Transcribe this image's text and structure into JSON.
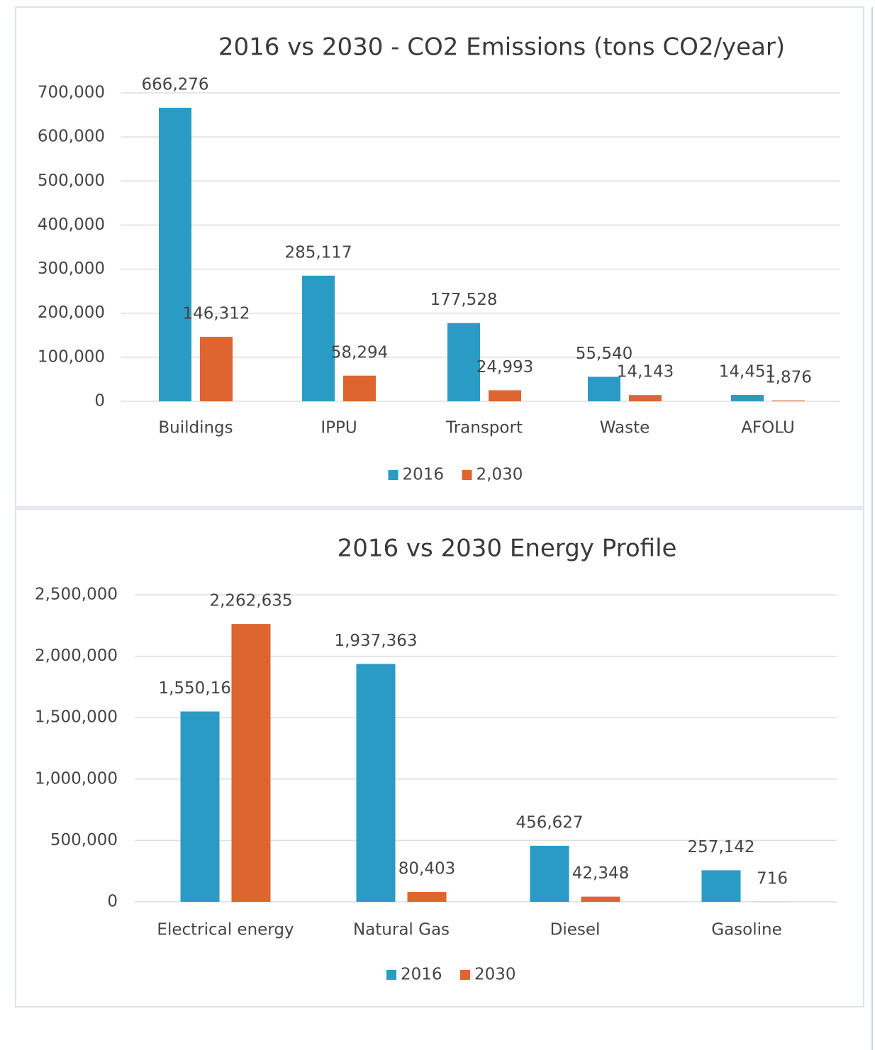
{
  "chart_data": [
    {
      "type": "bar",
      "title": "2016 vs 2030 - CO2 Emissions (tons CO2/year)",
      "categories": [
        "Buildings",
        "IPPU",
        "Transport",
        "Waste",
        "AFOLU"
      ],
      "series": [
        {
          "name": "2016",
          "color": "#2a9bc4",
          "values": [
            666276,
            285117,
            177528,
            55540,
            14451
          ],
          "value_labels": [
            "666,276",
            "285,117",
            "177,528",
            "55,540",
            "14,451"
          ]
        },
        {
          "name": "2,030",
          "color": "#de6430",
          "values": [
            146312,
            58294,
            24993,
            14143,
            1876
          ],
          "value_labels": [
            "146,312",
            "58,294",
            "24,993",
            "14,143",
            "1,876"
          ]
        }
      ],
      "ylim": [
        0,
        700000
      ],
      "yticks": [
        0,
        {
          "value": 100000,
          "label": "100,000"
        },
        {
          "value": 200000,
          "label": "200,000"
        },
        {
          "value": 300000,
          "label": "300,000"
        },
        {
          "value": 400000,
          "label": "400,000"
        },
        {
          "value": 500000,
          "label": "500,000"
        },
        {
          "value": 600000,
          "label": "600,000"
        },
        {
          "value": 700000,
          "label": "700,000"
        }
      ],
      "grid": true,
      "legend": "bottom"
    },
    {
      "type": "bar",
      "title": "2016 vs 2030 Energy Profile",
      "categories": [
        "Electrical energy",
        "Natural Gas",
        "Diesel",
        "Gasoline"
      ],
      "series": [
        {
          "name": "2016",
          "color": "#2a9bc4",
          "values": [
            1550168,
            1937363,
            456627,
            257142
          ],
          "value_labels": [
            "1,550,168",
            "1,937,363",
            "456,627",
            "257,142"
          ]
        },
        {
          "name": "2030",
          "color": "#de6430",
          "values": [
            2262635,
            80403,
            42348,
            716
          ],
          "value_labels": [
            "2,262,635",
            "80,403",
            "42,348",
            "716"
          ]
        }
      ],
      "ylim": [
        0,
        2500000
      ],
      "yticks": [
        0,
        {
          "value": 500000,
          "label": "500,000"
        },
        {
          "value": 1000000,
          "label": "1,000,000"
        },
        {
          "value": 1500000,
          "label": "1,500,000"
        },
        {
          "value": 2000000,
          "label": "2,000,000"
        },
        {
          "value": 2500000,
          "label": "2,500,000"
        }
      ],
      "grid": true,
      "legend": "bottom"
    }
  ]
}
